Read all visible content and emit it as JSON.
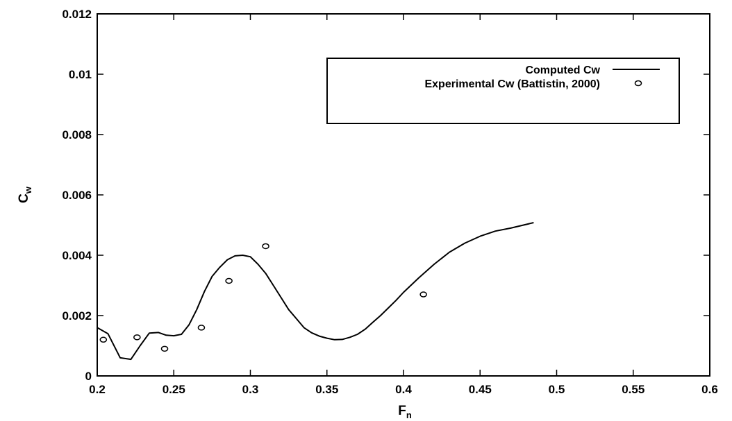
{
  "chart_data": {
    "type": "line",
    "title": "",
    "xlabel": "F",
    "xlabel_sub": "n",
    "ylabel": "C",
    "ylabel_sub": "w",
    "xlim": [
      0.2,
      0.6
    ],
    "ylim": [
      0,
      0.012
    ],
    "x_ticks": [
      0.2,
      0.25,
      0.3,
      0.35,
      0.4,
      0.45,
      0.5,
      0.55,
      0.6
    ],
    "x_tick_labels": [
      "0.2",
      "0.25",
      "0.3",
      "0.35",
      "0.4",
      "0.45",
      "0.5",
      "0.55",
      "0.6"
    ],
    "y_ticks": [
      0,
      0.002,
      0.004,
      0.006,
      0.008,
      0.01,
      0.012
    ],
    "y_tick_labels": [
      "0",
      "0.002",
      "0.004",
      "0.006",
      "0.008",
      "0.01",
      "0.012"
    ],
    "grid": false,
    "legend_position": "top-right",
    "series": [
      {
        "name": "Computed Cw",
        "style": "line",
        "color": "#000000",
        "x": [
          0.2,
          0.207,
          0.215,
          0.222,
          0.228,
          0.234,
          0.24,
          0.245,
          0.25,
          0.255,
          0.26,
          0.265,
          0.27,
          0.275,
          0.28,
          0.285,
          0.29,
          0.295,
          0.3,
          0.305,
          0.31,
          0.315,
          0.32,
          0.325,
          0.33,
          0.335,
          0.34,
          0.345,
          0.35,
          0.355,
          0.36,
          0.365,
          0.37,
          0.375,
          0.38,
          0.385,
          0.39,
          0.395,
          0.4,
          0.41,
          0.42,
          0.43,
          0.44,
          0.45,
          0.46,
          0.47,
          0.485
        ],
        "y": [
          0.0016,
          0.0014,
          0.0006,
          0.00055,
          0.001,
          0.00142,
          0.00144,
          0.00135,
          0.00133,
          0.00138,
          0.0017,
          0.0022,
          0.0028,
          0.0033,
          0.0036,
          0.00385,
          0.00398,
          0.004,
          0.00395,
          0.0037,
          0.0034,
          0.003,
          0.0026,
          0.0022,
          0.0019,
          0.0016,
          0.00143,
          0.00132,
          0.00125,
          0.0012,
          0.00121,
          0.00128,
          0.00138,
          0.00155,
          0.00178,
          0.002,
          0.00225,
          0.0025,
          0.00277,
          0.00325,
          0.0037,
          0.0041,
          0.0044,
          0.00463,
          0.0048,
          0.0049,
          0.00508
        ]
      },
      {
        "name": "Experimental Cw (Battistin, 2000)",
        "style": "scatter",
        "marker": "open-circle",
        "color": "#000000",
        "x": [
          0.204,
          0.226,
          0.244,
          0.268,
          0.286,
          0.31,
          0.413
        ],
        "y": [
          0.0012,
          0.00128,
          0.0009,
          0.0016,
          0.00315,
          0.0043,
          0.0027
        ]
      }
    ]
  }
}
